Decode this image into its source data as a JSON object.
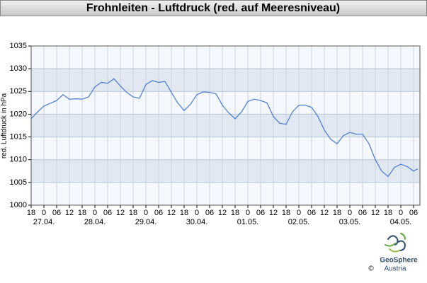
{
  "chart_data": {
    "type": "line",
    "title": "Frohnleiten - Luftdruck (red. auf Meeresniveau)",
    "y_label": "red. Luftdruck in hPa",
    "x": [
      0,
      3,
      6,
      9,
      12,
      15,
      18,
      21,
      24,
      27,
      30,
      33,
      36,
      39,
      42,
      45,
      48,
      51,
      54,
      57,
      60,
      63,
      66,
      69,
      72,
      75,
      78,
      81,
      84,
      87,
      90,
      93,
      96,
      99,
      102,
      105,
      108,
      111,
      114,
      117,
      120,
      123,
      126,
      129,
      132,
      135,
      138,
      141,
      144,
      147,
      150,
      153,
      156,
      159,
      162,
      165,
      168,
      171,
      174,
      177,
      180,
      182
    ],
    "series": [
      {
        "name": "Luftdruck",
        "color": "#4a78d4",
        "values": [
          1019.0,
          1020.5,
          1021.8,
          1022.4,
          1023.0,
          1024.3,
          1023.3,
          1023.4,
          1023.3,
          1023.8,
          1026.0,
          1027.0,
          1026.8,
          1027.8,
          1026.2,
          1024.8,
          1023.8,
          1023.5,
          1026.5,
          1027.4,
          1027.0,
          1027.2,
          1024.8,
          1022.5,
          1020.8,
          1022.2,
          1024.3,
          1024.9,
          1024.8,
          1024.5,
          1022.0,
          1020.3,
          1019.0,
          1020.5,
          1022.8,
          1023.3,
          1023.0,
          1022.5,
          1019.5,
          1018.0,
          1017.8,
          1020.5,
          1022.0,
          1022.0,
          1021.5,
          1019.5,
          1016.5,
          1014.5,
          1013.5,
          1015.3,
          1016.0,
          1015.6,
          1015.6,
          1013.5,
          1010.0,
          1007.5,
          1006.3,
          1008.3,
          1009.0,
          1008.5,
          1007.5,
          1008.0
        ]
      }
    ],
    "xlim": [
      0,
      183
    ],
    "ylim": [
      1000,
      1035
    ],
    "yticks": [
      1000,
      1005,
      1010,
      1015,
      1020,
      1025,
      1030,
      1035
    ],
    "xticks": [
      {
        "value": 0,
        "label": "18"
      },
      {
        "value": 6,
        "label": "0"
      },
      {
        "value": 12,
        "label": "06"
      },
      {
        "value": 18,
        "label": "12"
      },
      {
        "value": 24,
        "label": "18"
      },
      {
        "value": 30,
        "label": "0"
      },
      {
        "value": 36,
        "label": "06"
      },
      {
        "value": 42,
        "label": "12"
      },
      {
        "value": 48,
        "label": "18"
      },
      {
        "value": 54,
        "label": "0"
      },
      {
        "value": 60,
        "label": "06"
      },
      {
        "value": 66,
        "label": "12"
      },
      {
        "value": 72,
        "label": "18"
      },
      {
        "value": 78,
        "label": "0"
      },
      {
        "value": 84,
        "label": "06"
      },
      {
        "value": 90,
        "label": "12"
      },
      {
        "value": 96,
        "label": "18"
      },
      {
        "value": 102,
        "label": "0"
      },
      {
        "value": 108,
        "label": "06"
      },
      {
        "value": 114,
        "label": "12"
      },
      {
        "value": 120,
        "label": "18"
      },
      {
        "value": 126,
        "label": "0"
      },
      {
        "value": 132,
        "label": "06"
      },
      {
        "value": 138,
        "label": "12"
      },
      {
        "value": 144,
        "label": "18"
      },
      {
        "value": 150,
        "label": "0"
      },
      {
        "value": 156,
        "label": "06"
      },
      {
        "value": 162,
        "label": "12"
      },
      {
        "value": 168,
        "label": "18"
      },
      {
        "value": 174,
        "label": "0"
      },
      {
        "value": 180,
        "label": "06"
      }
    ],
    "date_labels": [
      {
        "value": 6,
        "label": "27.04."
      },
      {
        "value": 30,
        "label": "28.04."
      },
      {
        "value": 54,
        "label": "29.04."
      },
      {
        "value": 78,
        "label": "30.04."
      },
      {
        "value": 102,
        "label": "01.05."
      },
      {
        "value": 126,
        "label": "02.05."
      },
      {
        "value": 150,
        "label": "03.05."
      },
      {
        "value": 174,
        "label": "04.05."
      }
    ],
    "grid": true,
    "logo": {
      "name": "GeoSphere",
      "sub": "Austria",
      "copyright": "©"
    }
  }
}
